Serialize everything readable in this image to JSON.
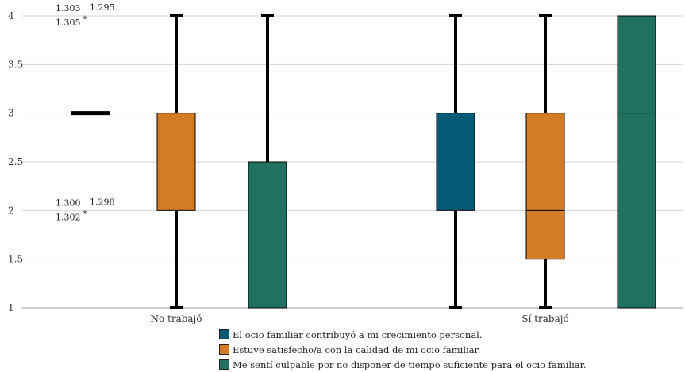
{
  "chart_data": {
    "type": "boxplot",
    "title": "",
    "xlabel": "",
    "ylabel": "",
    "ylim": [
      1,
      4
    ],
    "yticks": [
      "1",
      "1.5",
      "2",
      "2.5",
      "3",
      "3.5",
      "4"
    ],
    "categories": [
      "No trabajó",
      "Sí trabajó"
    ],
    "series": [
      {
        "name": "El ocio familiar contribuyó a mi crecimiento personal.",
        "color": "#045a74",
        "boxes": [
          {
            "category": "No trabajó",
            "min": 3,
            "q1": 3,
            "median": 3,
            "q3": 3,
            "max": 3
          },
          {
            "category": "Sí trabajó",
            "min": 1,
            "q1": 2,
            "median": 2,
            "q3": 3,
            "max": 4
          }
        ]
      },
      {
        "name": "Estuve satisfecho/a con la calidad de mi ocio familiar.",
        "color": "#d37c23",
        "boxes": [
          {
            "category": "No trabajó",
            "min": 1,
            "q1": 2,
            "median": 2,
            "q3": 3,
            "max": 4
          },
          {
            "category": "Sí trabajó",
            "min": 1,
            "q1": 1.5,
            "median": 2,
            "q3": 3,
            "max": 4
          }
        ]
      },
      {
        "name": "Me sentí culpable por no disponer de tiempo suficiente para el ocio familiar.",
        "color": "#20715f",
        "boxes": [
          {
            "category": "No trabajó",
            "min": 1,
            "q1": 1,
            "median": 1,
            "q3": 2.5,
            "max": 4
          },
          {
            "category": "Sí trabajó",
            "min": 1,
            "q1": 1,
            "median": 3,
            "q3": 4,
            "max": 4
          }
        ]
      }
    ],
    "outliers": [
      {
        "value": 4,
        "labels_left": [
          "1.303",
          "1.305"
        ],
        "label_right": "1.295"
      },
      {
        "value": 2,
        "labels_left": [
          "1.300",
          "1.302"
        ],
        "label_right": "1.298"
      }
    ],
    "outlier_marker": "*",
    "legend_position": "bottom"
  }
}
